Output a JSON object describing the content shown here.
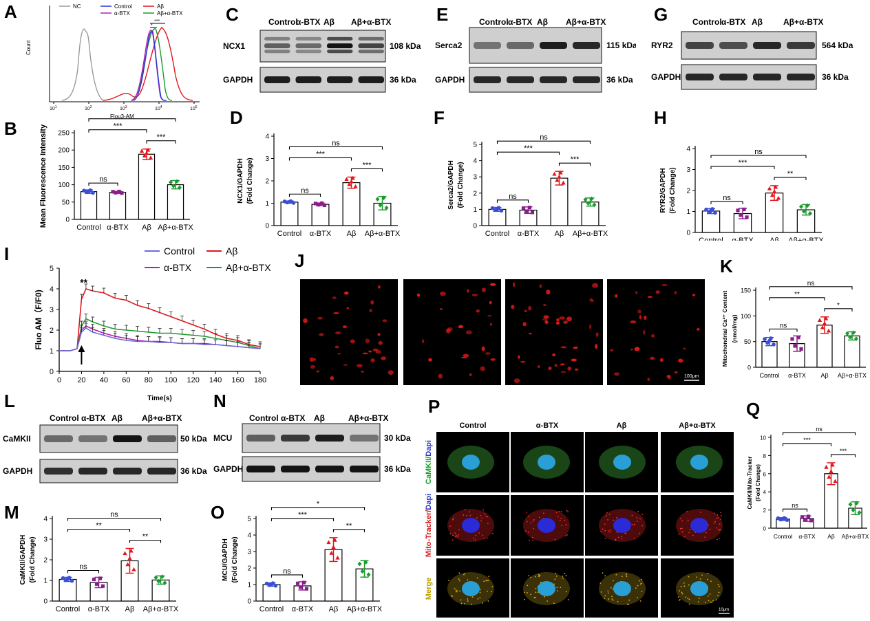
{
  "panels": {
    "A": {
      "label": "A",
      "ylabel": "Count",
      "xlabel": "Flou3-AM",
      "xticks": [
        "10^1",
        "10^2",
        "10^3",
        "10^4",
        "10^5"
      ],
      "legend": [
        {
          "name": "NC",
          "color": "#9a9a9a"
        },
        {
          "name": "Control",
          "color": "#2b34d9"
        },
        {
          "name": "Aβ",
          "color": "#e3161a"
        },
        {
          "name": "α-BTX",
          "color": "#b11db3"
        },
        {
          "name": "Aβ+α-BTX",
          "color": "#1a9b2c"
        }
      ],
      "sig": [
        "*",
        "***"
      ]
    },
    "C": {
      "label": "C",
      "lanes": [
        "Control",
        "α-BTX",
        "Aβ",
        "Aβ+α-BTX"
      ],
      "rows": [
        {
          "protein": "NCX1",
          "kda": "108 kDa"
        },
        {
          "protein": "GAPDH",
          "kda": "36 kDa"
        }
      ]
    },
    "E": {
      "label": "E",
      "lanes": [
        "Control",
        "α-BTX",
        "Aβ",
        "Aβ+α-BTX"
      ],
      "rows": [
        {
          "protein": "Serca2",
          "kda": "115 kDa"
        },
        {
          "protein": "GAPDH",
          "kda": "36 kDa"
        }
      ]
    },
    "G": {
      "label": "G",
      "lanes": [
        "Control",
        "α-BTX",
        "Aβ",
        "Aβ+α-BTX"
      ],
      "rows": [
        {
          "protein": "RYR2",
          "kda": "564 kDa"
        },
        {
          "protein": "GAPDH",
          "kda": "36 kDa"
        }
      ]
    },
    "L": {
      "label": "L",
      "lanes": [
        "Control",
        "α-BTX",
        "Aβ",
        "Aβ+α-BTX"
      ],
      "rows": [
        {
          "protein": "CaMKII",
          "kda": "50 kDa"
        },
        {
          "protein": "GAPDH",
          "kda": "36 kDa"
        }
      ]
    },
    "N": {
      "label": "N",
      "lanes": [
        "Control",
        "α-BTX",
        "Aβ",
        "Aβ+α-BTX"
      ],
      "rows": [
        {
          "protein": "MCU",
          "kda": "30 kDa"
        },
        {
          "protein": "GAPDH",
          "kda": "36 kDa"
        }
      ]
    },
    "I": {
      "label": "I",
      "ylabel": "Fluo AM（F/F0)",
      "xlabel": "Time(s)",
      "sig": "**",
      "legend": [
        {
          "name": "Control",
          "color": "#6b6bdc"
        },
        {
          "name": "Aβ",
          "color": "#e3161a"
        },
        {
          "name": "α-BTX",
          "color": "#b11db3"
        },
        {
          "name": "Aβ+α-BTX",
          "color": "#1a9b2c"
        }
      ]
    },
    "J": {
      "label": "J",
      "scale": "100μm"
    },
    "P": {
      "label": "P",
      "cols": [
        "Control",
        "α-BTX",
        "Aβ",
        "Aβ+α-BTX"
      ],
      "rows": [
        {
          "parts": [
            {
              "text": "CaMKII",
              "color": "#1a9b2c"
            },
            {
              "text": "/",
              "color": "#1a9b2c"
            },
            {
              "text": "Dapi",
              "color": "#2a35c9"
            }
          ]
        },
        {
          "parts": [
            {
              "text": "Mito-Tracker",
              "color": "#d81818"
            },
            {
              "text": "/",
              "color": "#d81818"
            },
            {
              "text": "Dapi",
              "color": "#2a35c9"
            }
          ]
        },
        {
          "parts": [
            {
              "text": "Merge",
              "color": "#b8a000"
            }
          ]
        }
      ],
      "scale": "10μm"
    }
  },
  "chart_data": [
    {
      "id": "B",
      "label": "B",
      "type": "bar",
      "ylabel": "Mean Fluorescence Intensity",
      "categories": [
        "Control",
        "α-BTX",
        "Aβ",
        "Aβ+α-BTX"
      ],
      "values": [
        80,
        78,
        188,
        100
      ],
      "errors": [
        5,
        3,
        15,
        12
      ],
      "ylim": [
        0,
        250
      ],
      "yticks": [
        "0",
        "50",
        "100",
        "150",
        "200",
        "250"
      ],
      "sig": [
        {
          "a": 0,
          "b": 1,
          "t": "ns"
        },
        {
          "a": 2,
          "b": 3,
          "t": "***"
        },
        {
          "a": 0,
          "b": 2,
          "t": "***"
        },
        {
          "a": 0,
          "b": 3,
          "t": "*"
        }
      ]
    },
    {
      "id": "D",
      "label": "D",
      "type": "bar",
      "ylabel": "NCX1/GAPDH",
      "ylabel2": "(Fold Change)",
      "categories": [
        "Control",
        "α-BTX",
        "Aβ",
        "Aβ+α-BTX"
      ],
      "values": [
        1.05,
        0.95,
        1.92,
        1.0
      ],
      "errors": [
        0.05,
        0.06,
        0.25,
        0.3
      ],
      "ylim": [
        0,
        4
      ],
      "yticks": [
        "0",
        "1",
        "2",
        "3",
        "4"
      ],
      "sig": [
        {
          "a": 0,
          "b": 1,
          "t": "ns"
        },
        {
          "a": 2,
          "b": 3,
          "t": "***"
        },
        {
          "a": 0,
          "b": 2,
          "t": "***"
        },
        {
          "a": 0,
          "b": 3,
          "t": "ns"
        }
      ]
    },
    {
      "id": "F",
      "label": "F",
      "type": "bar",
      "ylabel": "Serca2/GAPDH",
      "ylabel2": "(Fold Change)",
      "categories": [
        "Control",
        "α-BTX",
        "Aβ",
        "Aβ+α-BTX"
      ],
      "values": [
        1.0,
        0.95,
        2.92,
        1.45
      ],
      "errors": [
        0.12,
        0.2,
        0.42,
        0.25
      ],
      "ylim": [
        0,
        5
      ],
      "yticks": [
        "0",
        "1",
        "2",
        "3",
        "4",
        "5"
      ],
      "sig": [
        {
          "a": 0,
          "b": 1,
          "t": "ns"
        },
        {
          "a": 2,
          "b": 3,
          "t": "***"
        },
        {
          "a": 0,
          "b": 2,
          "t": "***"
        },
        {
          "a": 0,
          "b": 3,
          "t": "ns"
        }
      ]
    },
    {
      "id": "H",
      "label": "H",
      "type": "bar",
      "ylabel": "RYR2/GAPDH",
      "ylabel2": "(Fold Change)",
      "categories": [
        "Control",
        "α-BTX",
        "Aβ",
        "Aβ+α-BTX"
      ],
      "values": [
        1.02,
        0.9,
        1.88,
        1.08
      ],
      "errors": [
        0.12,
        0.25,
        0.35,
        0.25
      ],
      "ylim": [
        0,
        4
      ],
      "yticks": [
        "0",
        "1",
        "2",
        "3",
        "4"
      ],
      "sig": [
        {
          "a": 0,
          "b": 1,
          "t": "ns"
        },
        {
          "a": 2,
          "b": 3,
          "t": "**"
        },
        {
          "a": 0,
          "b": 2,
          "t": "***"
        },
        {
          "a": 0,
          "b": 3,
          "t": "ns"
        }
      ]
    },
    {
      "id": "K",
      "label": "K",
      "type": "bar",
      "ylabel": "Mitochondrial Ca²⁺ Content",
      "ylabel2": "(nmol/mg)",
      "categories": [
        "Control",
        "α-BTX",
        "Aβ",
        "Aβ+α-BTX"
      ],
      "values": [
        50,
        46,
        82,
        61
      ],
      "errors": [
        8,
        15,
        16,
        8
      ],
      "ylim": [
        0,
        150
      ],
      "yticks": [
        "0",
        "50",
        "100",
        "150"
      ],
      "sig": [
        {
          "a": 0,
          "b": 1,
          "t": "ns"
        },
        {
          "a": 2,
          "b": 3,
          "t": "*"
        },
        {
          "a": 0,
          "b": 2,
          "t": "**"
        },
        {
          "a": 0,
          "b": 3,
          "t": "ns"
        }
      ]
    },
    {
      "id": "M",
      "label": "M",
      "type": "bar",
      "ylabel": "CaMKII/GAPDH",
      "ylabel2": "(Fold Change)",
      "categories": [
        "Control",
        "α-BTX",
        "Aβ",
        "Aβ+α-BTX"
      ],
      "values": [
        1.05,
        0.9,
        1.95,
        1.02
      ],
      "errors": [
        0.1,
        0.25,
        0.6,
        0.2
      ],
      "ylim": [
        0,
        4
      ],
      "yticks": [
        "0",
        "1",
        "2",
        "3",
        "4"
      ],
      "sig": [
        {
          "a": 0,
          "b": 1,
          "t": "ns"
        },
        {
          "a": 2,
          "b": 3,
          "t": "**"
        },
        {
          "a": 0,
          "b": 2,
          "t": "**"
        },
        {
          "a": 0,
          "b": 3,
          "t": "ns"
        }
      ]
    },
    {
      "id": "O",
      "label": "O",
      "type": "bar",
      "ylabel": "MCU/GAPDH",
      "ylabel2": "(Fold Change)",
      "categories": [
        "Control",
        "α-BTX",
        "Aβ",
        "Aβ+α-BTX"
      ],
      "values": [
        1.0,
        0.92,
        3.12,
        1.95
      ],
      "errors": [
        0.1,
        0.25,
        0.72,
        0.5
      ],
      "ylim": [
        0,
        5
      ],
      "yticks": [
        "0",
        "1",
        "2",
        "3",
        "4",
        "5"
      ],
      "sig": [
        {
          "a": 0,
          "b": 1,
          "t": "ns"
        },
        {
          "a": 2,
          "b": 3,
          "t": "**"
        },
        {
          "a": 0,
          "b": 2,
          "t": "***"
        },
        {
          "a": 0,
          "b": 3,
          "t": "*"
        }
      ]
    },
    {
      "id": "Q",
      "label": "Q",
      "type": "bar",
      "ylabel": "CaMKII/Mito-Tracker",
      "ylabel2": "(Fold Change)",
      "categories": [
        "Control",
        "α-BTX",
        "Aβ",
        "Aβ+α-BTX"
      ],
      "values": [
        1.0,
        1.05,
        6.0,
        2.2
      ],
      "errors": [
        0.15,
        0.3,
        1.2,
        0.7
      ],
      "ylim": [
        0,
        10
      ],
      "yticks": [
        "0",
        "2",
        "4",
        "6",
        "8",
        "10"
      ],
      "sig": [
        {
          "a": 0,
          "b": 1,
          "t": "ns"
        },
        {
          "a": 2,
          "b": 3,
          "t": "***"
        },
        {
          "a": 0,
          "b": 2,
          "t": "***"
        },
        {
          "a": 0,
          "b": 3,
          "t": "ns"
        }
      ]
    },
    {
      "id": "I",
      "type": "line",
      "xlabel": "Time(s)",
      "ylabel": "Fluo AM（F/F0)",
      "xlim": [
        0,
        180
      ],
      "ylim": [
        0,
        5
      ],
      "xticks": [
        0,
        20,
        40,
        60,
        80,
        100,
        120,
        140,
        160,
        180
      ],
      "yticks": [
        0,
        1,
        2,
        3,
        4,
        5
      ],
      "series": [
        {
          "name": "Aβ",
          "color": "#e3161a",
          "x": [
            0,
            10,
            16,
            20,
            24,
            30,
            40,
            50,
            60,
            70,
            80,
            90,
            100,
            110,
            120,
            130,
            140,
            150,
            160,
            170,
            180
          ],
          "y": [
            1,
            1,
            1.1,
            3.5,
            4.0,
            3.9,
            3.8,
            3.55,
            3.45,
            3.2,
            3.05,
            2.85,
            2.65,
            2.45,
            2.25,
            2.05,
            1.8,
            1.6,
            1.5,
            1.3,
            1.2
          ]
        },
        {
          "name": "Aβ+α-BTX",
          "color": "#1a9b2c",
          "x": [
            0,
            10,
            16,
            20,
            24,
            30,
            40,
            50,
            60,
            70,
            80,
            90,
            100,
            110,
            120,
            130,
            140,
            150,
            160,
            170,
            180
          ],
          "y": [
            1,
            1,
            1.1,
            2.2,
            2.55,
            2.4,
            2.2,
            2.05,
            2.0,
            1.95,
            1.9,
            1.85,
            1.85,
            1.8,
            1.75,
            1.7,
            1.6,
            1.5,
            1.4,
            1.25,
            1.1
          ]
        },
        {
          "name": "α-BTX",
          "color": "#b11db3",
          "x": [
            0,
            10,
            16,
            20,
            24,
            30,
            40,
            50,
            60,
            70,
            80,
            90,
            100,
            110,
            120,
            130,
            140,
            150,
            160,
            170,
            180
          ],
          "y": [
            1,
            1,
            1.1,
            2.0,
            2.2,
            2.05,
            1.85,
            1.7,
            1.6,
            1.5,
            1.45,
            1.45,
            1.4,
            1.35,
            1.35,
            1.35,
            1.3,
            1.25,
            1.2,
            1.15,
            1.1
          ]
        },
        {
          "name": "Control",
          "color": "#6b6bdc",
          "x": [
            0,
            10,
            16,
            20,
            24,
            30,
            40,
            50,
            60,
            70,
            80,
            90,
            100,
            110,
            120,
            130,
            140,
            150,
            160,
            170,
            180
          ],
          "y": [
            1,
            1,
            1.1,
            1.9,
            2.1,
            1.9,
            1.75,
            1.6,
            1.5,
            1.45,
            1.45,
            1.4,
            1.4,
            1.35,
            1.35,
            1.3,
            1.3,
            1.25,
            1.2,
            1.15,
            1.1
          ]
        }
      ]
    }
  ]
}
